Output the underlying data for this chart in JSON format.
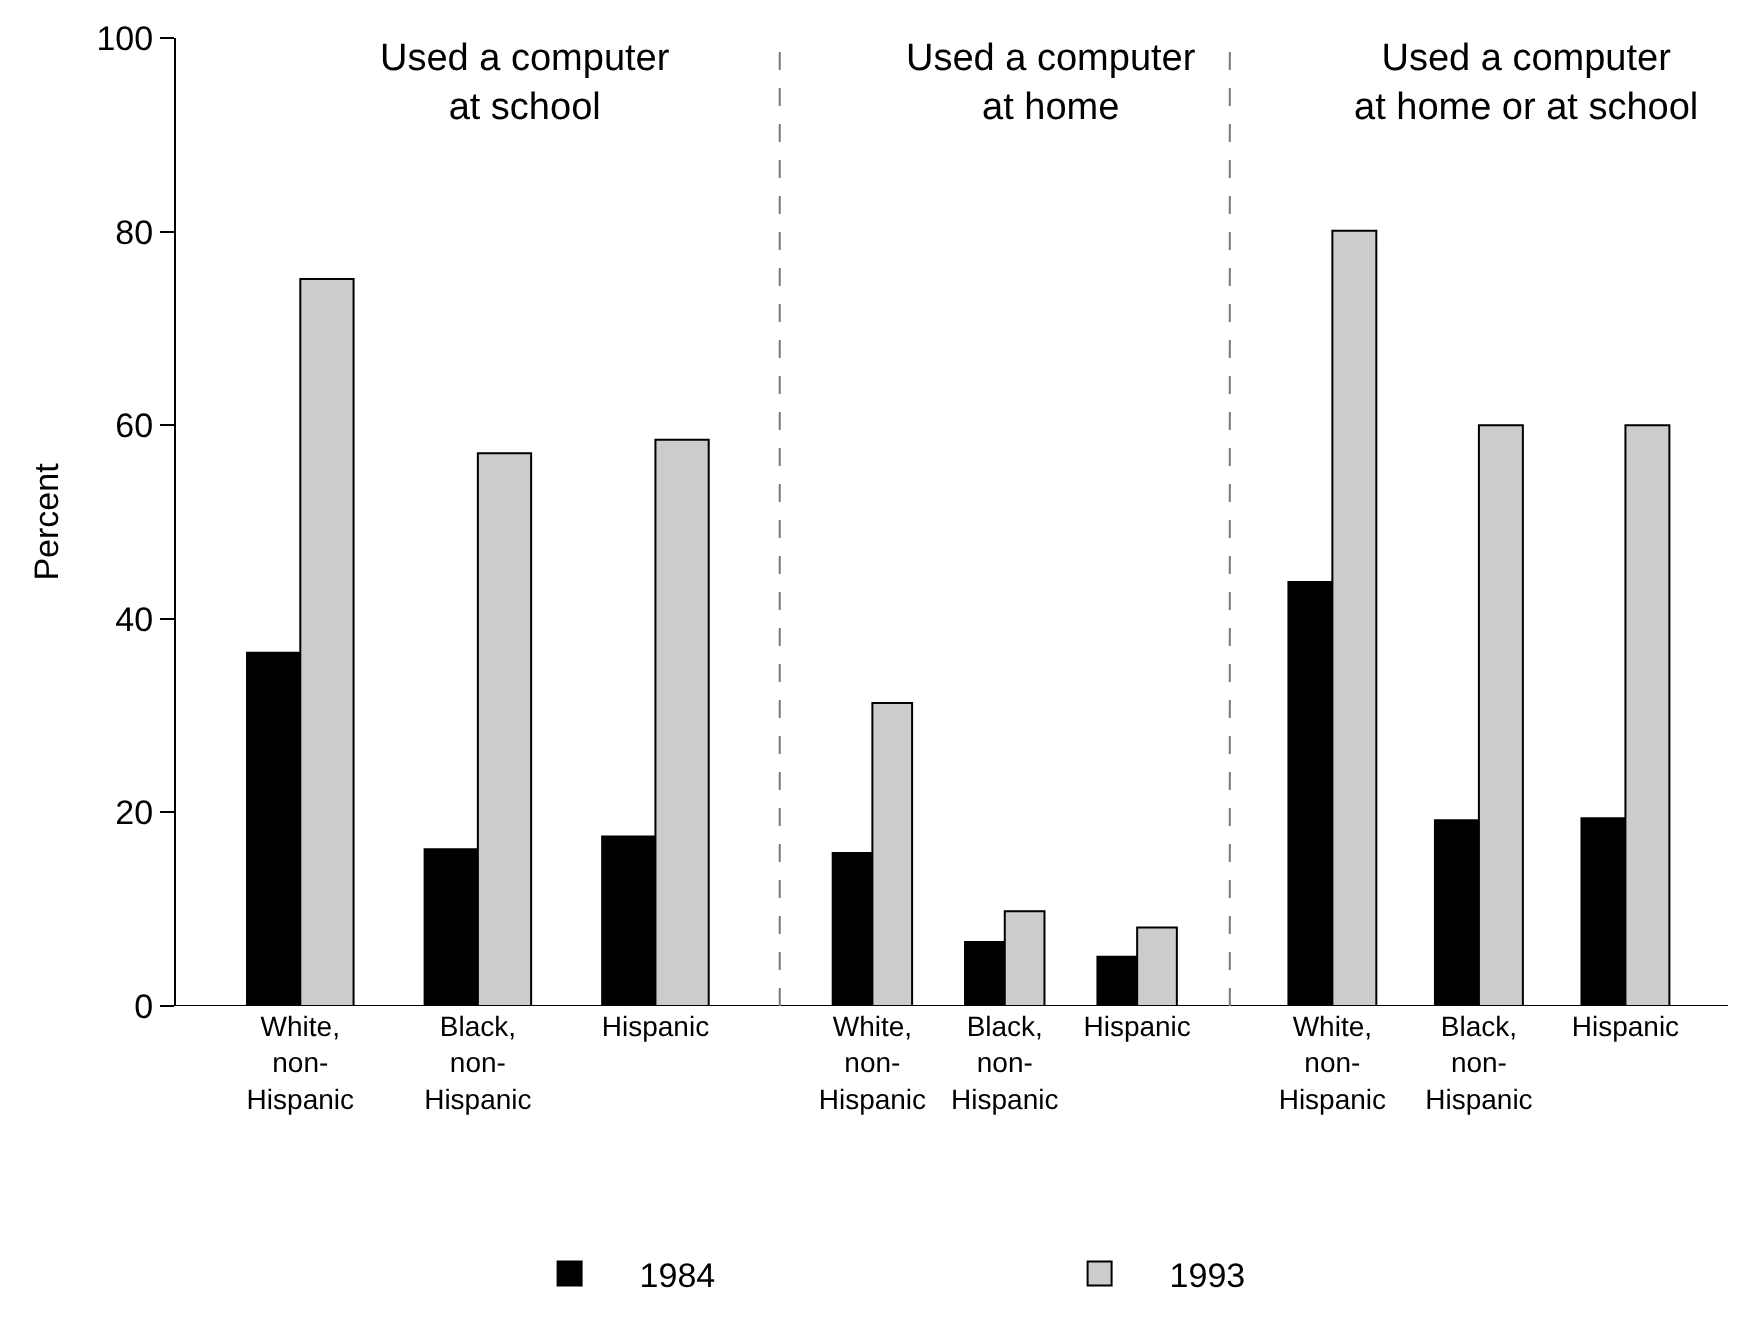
{
  "chart_data": [
    {
      "type": "bar",
      "title": "Used a computer\nat school",
      "ylabel": "Percent",
      "categories": [
        "White,\nnon-\nHispanic",
        "Black,\nnon-\nHispanic",
        "Hispanic"
      ],
      "series": [
        {
          "name": "1984",
          "color": "#000000",
          "values": [
            36.5,
            16.2,
            17.5
          ]
        },
        {
          "name": "1993",
          "color": "#cccccc",
          "values": [
            75.1,
            57.1,
            58.5
          ]
        }
      ],
      "ylim": [
        0,
        100
      ],
      "yticks": [
        0,
        20,
        40,
        60,
        80,
        100
      ],
      "legend": "bottom"
    },
    {
      "type": "bar",
      "title": "Used a computer\nat home",
      "categories": [
        "White,\nnon-\nHispanic",
        "Black,\nnon-\nHispanic",
        "Hispanic"
      ],
      "series": [
        {
          "name": "1984",
          "color": "#000000",
          "values": [
            15.8,
            6.6,
            5.1
          ]
        },
        {
          "name": "1993",
          "color": "#cccccc",
          "values": [
            31.3,
            9.8,
            8.1
          ]
        }
      ],
      "ylim": [
        0,
        100
      ],
      "tick_labels": "x"
    },
    {
      "type": "bar",
      "title": "Used a computer\nat home or at school",
      "categories": [
        "White,\nnon-\nHispanic",
        "Black,\nnon-\nHispanic",
        "Hispanic"
      ],
      "series": [
        {
          "name": "1984",
          "color": "#000000",
          "values": [
            43.8,
            19.2,
            19.4
          ]
        },
        {
          "name": "1993",
          "color": "#cccccc",
          "values": [
            80.1,
            60.0,
            60.0
          ]
        }
      ],
      "ylim": [
        0,
        100
      ],
      "tick_labels": "x"
    }
  ]
}
